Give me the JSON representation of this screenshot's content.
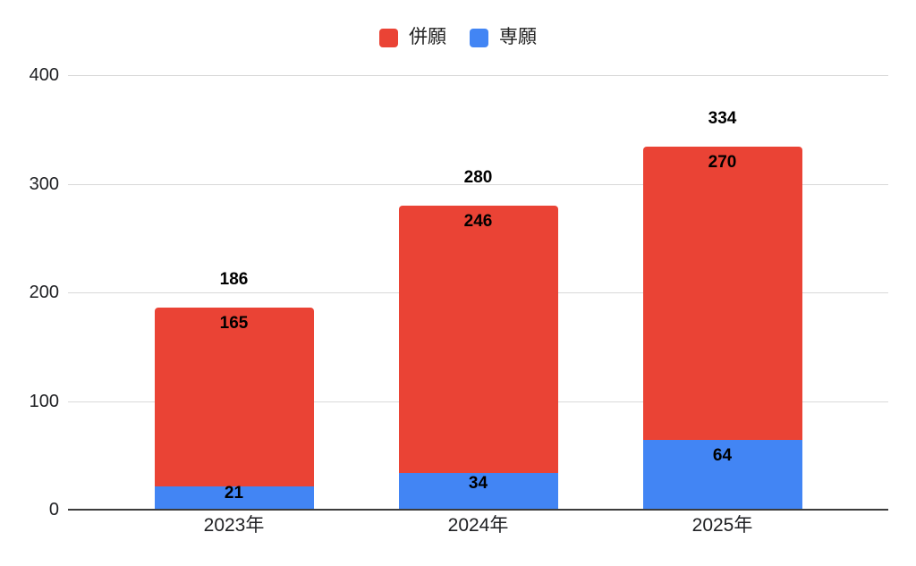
{
  "chart_data": {
    "type": "bar",
    "stacked": true,
    "title": "",
    "xlabel": "",
    "ylabel": "",
    "categories": [
      "2023年",
      "2024年",
      "2025年"
    ],
    "series": [
      {
        "name": "併願",
        "color": "#EA4335",
        "values": [
          165,
          246,
          270
        ]
      },
      {
        "name": "専願",
        "color": "#4285F4",
        "values": [
          21,
          34,
          64
        ]
      }
    ],
    "stack_bottom_to_top": [
      "専願",
      "併願"
    ],
    "totals": [
      186,
      280,
      334
    ],
    "ylim": [
      0,
      400
    ],
    "yticks": [
      0,
      100,
      200,
      300,
      400
    ],
    "grid": true,
    "legend_position": "top-center"
  },
  "colors": {
    "background": "#ffffff",
    "gridline": "#d9d9d9",
    "axis_line": "#3c3c3c",
    "value_label_text": "#000000",
    "axis_text": "#202124",
    "legend_text": "#212121"
  }
}
